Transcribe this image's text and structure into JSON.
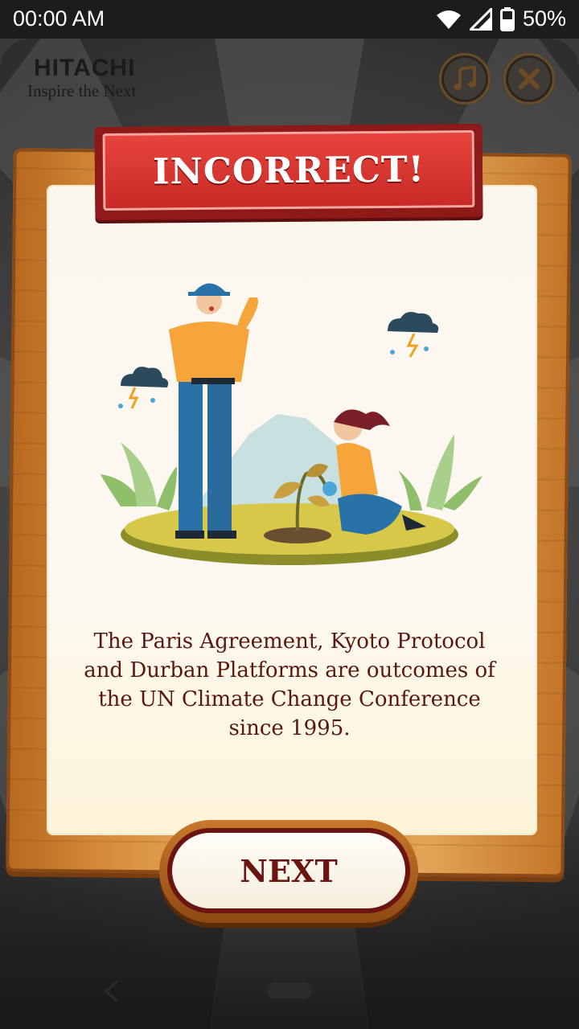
{
  "status_bar": {
    "time": "00:00 AM",
    "battery": "50%",
    "icons": [
      "wifi-icon",
      "signal-icon",
      "battery-icon"
    ]
  },
  "header": {
    "brand_name": "HITACHI",
    "brand_tagline": "Inspire the Next",
    "buttons": [
      "music-icon",
      "close-icon"
    ]
  },
  "result": {
    "title": "INCORRECT!",
    "message": "The Paris Agreement, Kyoto Protocol and Durban Platforms are outcomes of the UN Climate Change Conference since 1995."
  },
  "actions": {
    "next_label": "NEXT"
  },
  "colors": {
    "banner_red": "#d8332e",
    "text_maroon": "#5a1712",
    "wood": "#d68d3b",
    "paper": "#fbf6ee"
  }
}
